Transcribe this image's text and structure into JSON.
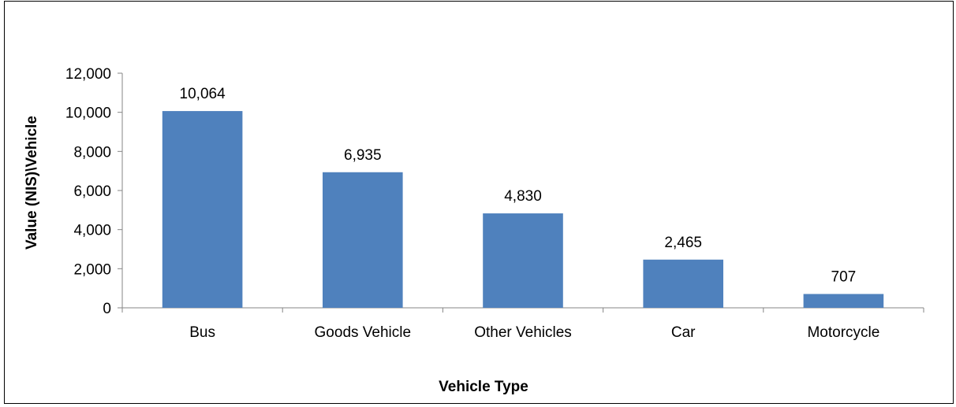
{
  "chart_data": {
    "type": "bar",
    "title": "",
    "xlabel": "Vehicle Type",
    "ylabel": "Value (NIS)\\Vehicle",
    "categories": [
      "Bus",
      "Goods Vehicle",
      "Other Vehicles",
      "Car",
      "Motorcycle"
    ],
    "values": [
      10064,
      6935,
      4830,
      2465,
      707
    ],
    "value_labels": [
      "10,064",
      "6,935",
      "4,830",
      "2,465",
      "707"
    ],
    "ylim": [
      0,
      12000
    ],
    "yticks": [
      0,
      2000,
      4000,
      6000,
      8000,
      10000,
      12000
    ],
    "ytick_labels": [
      "0",
      "2,000",
      "4,000",
      "6,000",
      "8,000",
      "10,000",
      "12,000"
    ],
    "bar_color": "#4f81bd",
    "grid": false,
    "legend": "none"
  }
}
